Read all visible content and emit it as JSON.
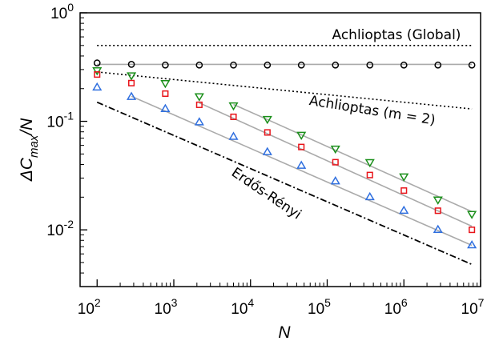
{
  "chart_data": {
    "type": "scatter",
    "xscale": "log",
    "yscale": "log",
    "xlim": [
      60,
      10000000
    ],
    "ylim": [
      0.003,
      1
    ],
    "xlabel": "N",
    "ylabel": "ΔC_max/N",
    "x_ticks": [
      {
        "value": 100,
        "base": "10",
        "exp": "2"
      },
      {
        "value": 1000,
        "base": "10",
        "exp": "3"
      },
      {
        "value": 10000,
        "base": "10",
        "exp": "4"
      },
      {
        "value": 100000,
        "base": "10",
        "exp": "5"
      },
      {
        "value": 1000000,
        "base": "10",
        "exp": "6"
      },
      {
        "value": 10000000,
        "base": "10",
        "exp": "7"
      }
    ],
    "y_ticks": [
      {
        "value": 1,
        "base": "10",
        "exp": "0"
      },
      {
        "value": 0.1,
        "base": "10",
        "exp": "-1"
      },
      {
        "value": 0.01,
        "base": "10",
        "exp": "-2"
      }
    ],
    "colors": {
      "black": "#000000",
      "red": "#e8141a",
      "green": "#1a8f1a",
      "blue": "#2f6fdf",
      "fit": "#aaaaaa"
    },
    "series": [
      {
        "marker": "circle",
        "color": "#000000",
        "points": [
          [
            100,
            0.345
          ],
          [
            280,
            0.335
          ],
          [
            775,
            0.33
          ],
          [
            2150,
            0.33
          ],
          [
            6000,
            0.33
          ],
          [
            16600,
            0.33
          ],
          [
            46000,
            0.33
          ],
          [
            128000,
            0.33
          ],
          [
            360000,
            0.33
          ],
          [
            1000000,
            0.33
          ],
          [
            2780000,
            0.33
          ],
          [
            7700000,
            0.33
          ]
        ],
        "fits": [
          [
            [
              100,
              0.335
            ],
            [
              7700000,
              0.335
            ]
          ]
        ]
      },
      {
        "marker": "triangle-down",
        "color": "#1a8f1a",
        "points": [
          [
            100,
            0.295
          ],
          [
            280,
            0.265
          ],
          [
            775,
            0.225
          ],
          [
            2150,
            0.17
          ],
          [
            6000,
            0.14
          ],
          [
            16600,
            0.105
          ],
          [
            46000,
            0.075
          ],
          [
            128000,
            0.056
          ],
          [
            360000,
            0.042
          ],
          [
            1000000,
            0.031
          ],
          [
            2780000,
            0.019
          ],
          [
            7700000,
            0.014
          ]
        ],
        "fits": [
          [
            [
              6000,
              0.143
            ],
            [
              16600,
              0.104
            ],
            [
              7700000,
              0.0147
            ]
          ]
        ]
      },
      {
        "marker": "square",
        "color": "#e8141a",
        "points": [
          [
            100,
            0.27
          ],
          [
            280,
            0.225
          ],
          [
            775,
            0.18
          ],
          [
            2150,
            0.142
          ],
          [
            6000,
            0.11
          ],
          [
            16600,
            0.079
          ],
          [
            46000,
            0.058
          ],
          [
            128000,
            0.042
          ],
          [
            360000,
            0.032
          ],
          [
            1000000,
            0.023
          ],
          [
            2780000,
            0.015
          ],
          [
            7700000,
            0.01
          ]
        ],
        "fits": [
          [
            [
              2150,
              0.148
            ],
            [
              7700000,
              0.0108
            ]
          ]
        ]
      },
      {
        "marker": "triangle-up",
        "color": "#2f6fdf",
        "points": [
          [
            100,
            0.205
          ],
          [
            280,
            0.168
          ],
          [
            775,
            0.13
          ],
          [
            2150,
            0.098
          ],
          [
            6000,
            0.072
          ],
          [
            16600,
            0.052
          ],
          [
            46000,
            0.039
          ],
          [
            128000,
            0.028
          ],
          [
            360000,
            0.02
          ],
          [
            1000000,
            0.015
          ],
          [
            2780000,
            0.01
          ],
          [
            7700000,
            0.0072
          ]
        ],
        "fits": [
          [
            [
              280,
              0.17
            ],
            [
              7700000,
              0.0072
            ]
          ]
        ]
      }
    ],
    "reference_lines": [
      {
        "style": "dotted",
        "points": [
          [
            100,
            0.5
          ],
          [
            7700000,
            0.5
          ]
        ]
      },
      {
        "style": "dotted",
        "points": [
          [
            100,
            0.285
          ],
          [
            7700000,
            0.13
          ]
        ]
      },
      {
        "style": "dashdot",
        "points": [
          [
            100,
            0.15
          ],
          [
            7700000,
            0.0048
          ]
        ]
      }
    ],
    "annotations": [
      {
        "text": "Achlioptas (Global)",
        "x": 800000,
        "y": 0.57,
        "rotate": 0
      },
      {
        "text": "Achlioptas (m = 2)",
        "x": 380000,
        "y": 0.115,
        "rotate": 9
      },
      {
        "text": "Erdős-Rényi",
        "x": 15000,
        "y": 0.02,
        "rotate": 34
      }
    ]
  }
}
